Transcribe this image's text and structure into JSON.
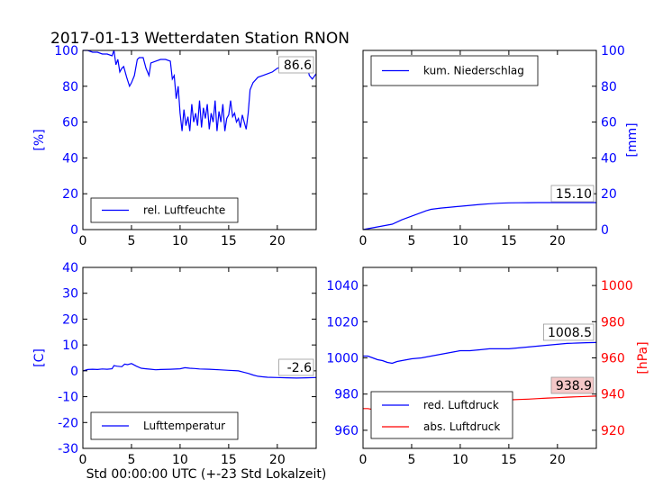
{
  "figure": {
    "title": "2017-01-13 Wetterdaten Station RNON",
    "xlabel": "Std 00:00:00 UTC (+-23 Std Lokalzeit)",
    "colors": {
      "primary": "#0000ff",
      "secondary": "#ff0000",
      "axis": "#000000"
    }
  },
  "chart_data": [
    {
      "id": "humidity",
      "type": "line",
      "title": "",
      "xlabel": "",
      "ylabel": "[%]",
      "xlim": [
        0,
        24
      ],
      "ylim": [
        0,
        100
      ],
      "xticks": [
        0,
        5,
        10,
        15,
        20
      ],
      "yticks": [
        0,
        20,
        40,
        60,
        80,
        100
      ],
      "legend_position": "lower-center",
      "annotation": "86.6",
      "series": [
        {
          "name": "rel. Luftfeuchte",
          "color": "#0000ff",
          "x": [
            0,
            0.5,
            1,
            1.5,
            2,
            2.5,
            3,
            3.2,
            3.4,
            3.6,
            3.8,
            4,
            4.2,
            4.5,
            4.8,
            5,
            5.3,
            5.6,
            5.8,
            6,
            6.2,
            6.5,
            6.8,
            7,
            7.5,
            8,
            8.5,
            9,
            9.2,
            9.4,
            9.6,
            9.8,
            10,
            10.2,
            10.4,
            10.6,
            10.8,
            11,
            11.2,
            11.4,
            11.6,
            11.8,
            12,
            12.2,
            12.4,
            12.6,
            12.8,
            13,
            13.2,
            13.4,
            13.6,
            13.8,
            14,
            14.2,
            14.4,
            14.6,
            14.8,
            15,
            15.2,
            15.4,
            15.6,
            15.8,
            16,
            16.2,
            16.4,
            16.6,
            16.8,
            17,
            17.2,
            17.5,
            18,
            18.5,
            19,
            19.5,
            20,
            20.5,
            21,
            21.5,
            22,
            22.5,
            23,
            23.3,
            23.6,
            24
          ],
          "values": [
            100,
            100,
            99,
            99,
            98,
            98,
            97,
            100,
            92,
            95,
            88,
            90,
            91,
            85,
            80,
            82,
            86,
            95,
            96,
            96,
            96,
            90,
            86,
            93,
            94,
            95,
            95,
            94,
            84,
            86,
            73,
            80,
            65,
            55,
            67,
            58,
            63,
            55,
            70,
            60,
            65,
            58,
            72,
            57,
            68,
            62,
            70,
            56,
            65,
            60,
            72,
            55,
            66,
            60,
            70,
            55,
            62,
            64,
            72,
            63,
            65,
            60,
            62,
            57,
            64,
            60,
            56,
            65,
            78,
            82,
            85,
            86,
            87,
            88,
            90,
            91,
            93,
            94,
            95,
            95,
            93,
            86,
            84,
            87
          ]
        }
      ]
    },
    {
      "id": "precip",
      "type": "line",
      "title": "",
      "xlabel": "",
      "ylabel": "[mm]",
      "xlim": [
        0,
        24
      ],
      "ylim": [
        0,
        100
      ],
      "xticks": [
        0,
        5,
        10,
        15,
        20
      ],
      "yticks": [
        0,
        20,
        40,
        60,
        80,
        100
      ],
      "yaxis_side": "right",
      "legend_position": "upper-left",
      "annotation": "15.10",
      "series": [
        {
          "name": "kum. Niederschlag",
          "color": "#0000ff",
          "x": [
            0,
            1,
            2,
            3,
            4,
            5,
            6,
            6.5,
            7,
            8,
            9,
            10,
            11,
            12,
            13,
            14,
            15,
            16,
            17,
            18,
            19,
            20,
            21,
            22,
            23,
            24
          ],
          "values": [
            0,
            1,
            2,
            3,
            5.5,
            7.5,
            9.5,
            10.5,
            11.3,
            12,
            12.5,
            13,
            13.5,
            14,
            14.4,
            14.7,
            14.9,
            15,
            15.05,
            15.1,
            15.1,
            15.1,
            15.1,
            15.1,
            15.1,
            15.1
          ]
        }
      ]
    },
    {
      "id": "temperature",
      "type": "line",
      "title": "",
      "xlabel": "",
      "ylabel": "[C]",
      "xlim": [
        0,
        24
      ],
      "ylim": [
        -30,
        40
      ],
      "xticks": [
        0,
        5,
        10,
        15,
        20
      ],
      "yticks": [
        -30,
        -20,
        -10,
        0,
        10,
        20,
        30,
        40
      ],
      "legend_position": "lower-center",
      "annotation": "-2.6",
      "series": [
        {
          "name": "Lufttemperatur",
          "color": "#0000ff",
          "x": [
            0,
            0.5,
            1,
            1.5,
            2,
            2.5,
            3,
            3.2,
            3.5,
            4,
            4.3,
            4.6,
            5,
            5.5,
            6,
            6.5,
            7,
            7.5,
            8,
            9,
            10,
            10.5,
            11,
            11.5,
            12,
            13,
            14,
            15,
            16,
            16.5,
            17,
            17.5,
            18,
            18.5,
            19,
            20,
            21,
            22,
            23,
            24
          ],
          "values": [
            0,
            0.5,
            0.6,
            0.5,
            0.7,
            0.6,
            0.8,
            2,
            1.8,
            1.6,
            2.6,
            2.4,
            2.8,
            1.8,
            1,
            0.8,
            0.6,
            0.4,
            0.5,
            0.6,
            0.8,
            1.2,
            1,
            0.9,
            0.7,
            0.6,
            0.4,
            0.2,
            0,
            -0.5,
            -1,
            -1.6,
            -2.1,
            -2.3,
            -2.5,
            -2.6,
            -2.7,
            -2.8,
            -2.7,
            -2.6
          ]
        }
      ]
    },
    {
      "id": "pressure",
      "type": "line",
      "title": "",
      "xlabel": "",
      "ylabel": "",
      "ylabel_right": "[hPa]",
      "xlim": [
        0,
        24
      ],
      "ylim": [
        950,
        1050
      ],
      "ylim_right": [
        910,
        1010
      ],
      "xticks": [
        0,
        5,
        10,
        15,
        20
      ],
      "yticks": [
        960,
        980,
        1000,
        1020,
        1040
      ],
      "yticks_right": [
        920,
        940,
        960,
        980,
        1000
      ],
      "legend_position": "lower-center",
      "annotation": "1008.5",
      "annotation_right": "938.9",
      "series": [
        {
          "name": "red. Luftdruck",
          "color": "#0000ff",
          "axis": "left",
          "x": [
            0,
            0.5,
            1,
            1.5,
            2,
            2.5,
            3,
            3.5,
            4,
            5,
            6,
            7,
            8,
            9,
            10,
            11,
            12,
            13,
            14,
            15,
            16,
            17,
            18,
            19,
            20,
            21,
            22,
            23,
            24
          ],
          "values": [
            1001,
            1001,
            1000,
            999,
            998.5,
            997.5,
            997,
            998,
            998.5,
            999.5,
            1000,
            1001,
            1002,
            1003,
            1004,
            1004,
            1004.5,
            1005,
            1005,
            1005,
            1005.5,
            1006,
            1006.5,
            1007,
            1007.5,
            1008,
            1008.2,
            1008.4,
            1008.5
          ]
        },
        {
          "name": "abs. Luftdruck",
          "color": "#ff0000",
          "axis": "right",
          "x": [
            0,
            0.5,
            1,
            1.5,
            2,
            2.5,
            3,
            3.5,
            4,
            5,
            6,
            7,
            8,
            9,
            10,
            11,
            12,
            13,
            14,
            15,
            16,
            17,
            18,
            19,
            20,
            21,
            22,
            23,
            24
          ],
          "values": [
            932,
            932,
            931.5,
            930.5,
            929.5,
            929,
            928.5,
            930,
            931,
            932,
            933,
            934,
            935,
            935.5,
            936,
            936,
            936.2,
            936.5,
            936.5,
            936.8,
            937,
            937.2,
            937.5,
            937.8,
            938,
            938.3,
            938.5,
            938.7,
            938.9
          ]
        }
      ]
    }
  ]
}
